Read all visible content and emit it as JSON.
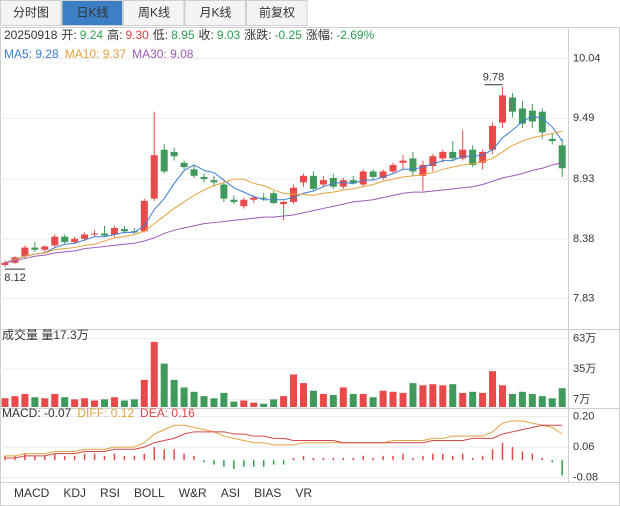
{
  "tabs": [
    "分时图",
    "日K线",
    "周K线",
    "月K线",
    "前复权"
  ],
  "active_tab": 1,
  "indicator_tabs": [
    "MACD",
    "KDJ",
    "RSI",
    "BOLL",
    "W&R",
    "ASI",
    "BIAS",
    "VR"
  ],
  "active_indicator": 0,
  "chart_data": [
    {
      "type": "candlestick",
      "info": {
        "date": "20250918",
        "items": [
          {
            "label": "开:",
            "value": "9.24",
            "color": "#2e9e4e"
          },
          {
            "label": "高:",
            "value": "9.30",
            "color": "#e03c3c"
          },
          {
            "label": "低:",
            "value": "8.95",
            "color": "#2e9e4e"
          },
          {
            "label": "收:",
            "value": "9.03",
            "color": "#2e9e4e"
          },
          {
            "label": "涨跌:",
            "value": "-0.25",
            "color": "#2e9e4e"
          },
          {
            "label": "涨幅:",
            "value": "-2.69%",
            "color": "#2e9e4e"
          }
        ]
      },
      "open": [
        8.14,
        8.16,
        8.22,
        8.3,
        8.28,
        8.32,
        8.4,
        8.35,
        8.38,
        8.42,
        8.43,
        8.42,
        8.47,
        8.45,
        8.45,
        8.75,
        9.2,
        9.18,
        9.08,
        9.02,
        8.95,
        8.92,
        8.88,
        8.74,
        8.68,
        8.74,
        8.76,
        8.8,
        8.7,
        8.72,
        8.9,
        8.96,
        8.88,
        8.94,
        8.86,
        8.92,
        8.88,
        9.0,
        8.94,
        9.0,
        9.08,
        9.12,
        8.96,
        9.05,
        9.12,
        9.18,
        9.12,
        9.2,
        9.08,
        9.2,
        9.45,
        9.68,
        9.58,
        9.56,
        9.55,
        9.3,
        9.24
      ],
      "high": [
        8.18,
        8.22,
        8.32,
        8.35,
        8.32,
        8.42,
        8.42,
        8.4,
        8.44,
        8.46,
        8.5,
        8.5,
        8.5,
        8.48,
        8.75,
        9.55,
        9.25,
        9.22,
        9.1,
        9.06,
        8.98,
        8.96,
        8.9,
        8.78,
        8.76,
        8.78,
        8.8,
        8.82,
        8.73,
        8.88,
        8.98,
        9.0,
        8.96,
        8.98,
        8.94,
        8.96,
        9.02,
        9.02,
        9.02,
        9.08,
        9.15,
        9.18,
        9.1,
        9.16,
        9.2,
        9.28,
        9.38,
        9.24,
        9.2,
        9.45,
        9.78,
        9.72,
        9.65,
        9.62,
        9.58,
        9.35,
        9.3
      ],
      "low": [
        8.12,
        8.15,
        8.2,
        8.26,
        8.25,
        8.3,
        8.33,
        8.33,
        8.36,
        8.4,
        8.4,
        8.4,
        8.43,
        8.43,
        8.44,
        8.73,
        8.98,
        9.1,
        9.02,
        8.94,
        8.9,
        8.86,
        8.72,
        8.7,
        8.66,
        8.71,
        8.73,
        8.7,
        8.55,
        8.7,
        8.86,
        8.82,
        8.86,
        8.84,
        8.84,
        8.88,
        8.86,
        8.92,
        8.92,
        8.98,
        9.02,
        8.96,
        8.82,
        9.0,
        9.08,
        9.1,
        9.1,
        9.04,
        9.02,
        9.16,
        9.4,
        9.5,
        9.4,
        9.4,
        9.3,
        9.25,
        8.95
      ],
      "close": [
        8.16,
        8.21,
        8.3,
        8.28,
        8.31,
        8.4,
        8.35,
        8.38,
        8.42,
        8.43,
        8.41,
        8.48,
        8.45,
        8.44,
        8.73,
        9.15,
        9.0,
        9.14,
        9.04,
        8.96,
        8.93,
        8.9,
        8.75,
        8.72,
        8.74,
        8.76,
        8.75,
        8.71,
        8.72,
        8.85,
        8.96,
        8.84,
        8.92,
        8.86,
        8.92,
        8.89,
        9.0,
        8.95,
        9.0,
        9.06,
        9.1,
        9.0,
        9.06,
        9.14,
        9.18,
        9.12,
        9.2,
        9.06,
        9.18,
        9.42,
        9.7,
        9.55,
        9.44,
        9.46,
        9.36,
        9.28,
        9.03
      ],
      "up_color": "#e84a4a",
      "down_color": "#3f9a5c",
      "series": [
        {
          "name": "MA5: 9.28",
          "color": "#3b7ed1",
          "values": [
            8.16,
            8.19,
            8.22,
            8.24,
            8.25,
            8.3,
            8.33,
            8.34,
            8.37,
            8.4,
            8.4,
            8.42,
            8.44,
            8.44,
            8.5,
            8.65,
            8.75,
            8.89,
            9.01,
            9.06,
            9.01,
            8.99,
            8.92,
            8.85,
            8.81,
            8.77,
            8.74,
            8.74,
            8.74,
            8.76,
            8.8,
            8.82,
            8.86,
            8.89,
            8.9,
            8.89,
            8.92,
            8.92,
            8.95,
            8.98,
            9.02,
            9.02,
            9.04,
            9.07,
            9.1,
            9.1,
            9.14,
            9.14,
            9.15,
            9.2,
            9.31,
            9.38,
            9.46,
            9.51,
            9.49,
            9.41,
            9.28
          ]
        },
        {
          "name": "MA10: 9.37",
          "color": "#e6a23c",
          "values": [
            8.16,
            8.19,
            8.22,
            8.24,
            8.25,
            8.28,
            8.29,
            8.3,
            8.32,
            8.33,
            8.36,
            8.39,
            8.4,
            8.42,
            8.45,
            8.52,
            8.59,
            8.66,
            8.72,
            8.78,
            8.83,
            8.87,
            8.9,
            8.93,
            8.93,
            8.89,
            8.87,
            8.83,
            8.8,
            8.79,
            8.79,
            8.78,
            8.8,
            8.81,
            8.83,
            8.84,
            8.86,
            8.88,
            8.91,
            8.93,
            8.95,
            8.96,
            8.97,
            8.99,
            9.02,
            9.04,
            9.06,
            9.07,
            9.09,
            9.12,
            9.18,
            9.24,
            9.28,
            9.31,
            9.33,
            9.35,
            9.37
          ]
        },
        {
          "name": "MA30: 9.08",
          "color": "#a05ab8",
          "values": [
            8.16,
            8.18,
            8.2,
            8.22,
            8.23,
            8.25,
            8.26,
            8.27,
            8.29,
            8.3,
            8.31,
            8.32,
            8.33,
            8.34,
            8.36,
            8.39,
            8.43,
            8.46,
            8.48,
            8.5,
            8.52,
            8.53,
            8.54,
            8.55,
            8.56,
            8.57,
            8.58,
            8.58,
            8.59,
            8.6,
            8.62,
            8.64,
            8.66,
            8.68,
            8.7,
            8.72,
            8.73,
            8.74,
            8.76,
            8.78,
            8.8,
            8.81,
            8.81,
            8.82,
            8.83,
            8.84,
            8.85,
            8.86,
            8.88,
            8.91,
            8.94,
            8.96,
            8.98,
            9.01,
            9.03,
            9.06,
            9.08
          ]
        }
      ],
      "ylim": [
        7.56,
        10.32
      ],
      "yticks": [
        10.04,
        9.49,
        8.93,
        8.38,
        7.83
      ],
      "grid": true
    },
    {
      "type": "bar",
      "title": "成交量 量17.3万",
      "values": [
        8,
        10,
        12,
        9,
        8,
        12,
        9,
        7,
        8,
        6,
        7,
        9,
        6,
        7,
        25,
        60,
        40,
        25,
        18,
        14,
        10,
        8,
        13,
        5,
        6,
        4,
        3,
        7,
        10,
        30,
        22,
        15,
        12,
        11,
        18,
        12,
        12,
        9,
        15,
        14,
        13,
        22,
        20,
        21,
        20,
        21,
        13,
        14,
        13,
        33,
        20,
        12,
        14,
        12,
        10,
        8,
        17.3
      ],
      "ylim": [
        0,
        70
      ],
      "yticks": [
        {
          "value": 63,
          "label": "63万"
        },
        {
          "value": 35,
          "label": "35万"
        },
        {
          "value": 7,
          "label": "7万"
        }
      ],
      "grid": true
    },
    {
      "type": "macd",
      "name": "MACD: -0.07",
      "color": "#333333",
      "up_color": "#e84a4a",
      "down_color": "#2e9e4e",
      "values": [
        0.02,
        0.02,
        0.03,
        0.02,
        0.02,
        0.03,
        0.02,
        0.02,
        0.03,
        0.03,
        0.02,
        0.03,
        0.02,
        0.02,
        0.03,
        0.06,
        0.05,
        0.05,
        0.03,
        0.02,
        -0.01,
        -0.02,
        -0.03,
        -0.04,
        -0.03,
        -0.03,
        -0.03,
        -0.02,
        -0.02,
        0.01,
        0.02,
        0.01,
        0.01,
        0.01,
        0.01,
        0.01,
        0.02,
        0.01,
        0.02,
        0.02,
        0.03,
        0.01,
        0.02,
        0.03,
        0.03,
        0.02,
        0.03,
        0.01,
        0.02,
        0.05,
        0.08,
        0.06,
        0.04,
        0.03,
        0.01,
        -0.01,
        -0.07
      ],
      "series": [
        {
          "name": "DIFF: 0.12",
          "color": "#e0a440",
          "values": [
            0.02,
            0.02,
            0.03,
            0.03,
            0.03,
            0.04,
            0.04,
            0.04,
            0.05,
            0.05,
            0.05,
            0.06,
            0.06,
            0.06,
            0.08,
            0.12,
            0.14,
            0.16,
            0.16,
            0.15,
            0.14,
            0.13,
            0.11,
            0.1,
            0.09,
            0.08,
            0.08,
            0.07,
            0.07,
            0.07,
            0.08,
            0.08,
            0.08,
            0.08,
            0.08,
            0.08,
            0.08,
            0.08,
            0.08,
            0.09,
            0.09,
            0.09,
            0.09,
            0.1,
            0.1,
            0.11,
            0.11,
            0.11,
            0.11,
            0.13,
            0.17,
            0.18,
            0.18,
            0.17,
            0.16,
            0.15,
            0.12
          ]
        },
        {
          "name": "DEA: 0.16",
          "color": "#d64545",
          "values": [
            0.01,
            0.01,
            0.02,
            0.02,
            0.02,
            0.03,
            0.03,
            0.03,
            0.04,
            0.04,
            0.04,
            0.05,
            0.05,
            0.05,
            0.06,
            0.08,
            0.09,
            0.1,
            0.12,
            0.13,
            0.13,
            0.13,
            0.13,
            0.12,
            0.12,
            0.11,
            0.11,
            0.1,
            0.1,
            0.09,
            0.09,
            0.09,
            0.09,
            0.09,
            0.08,
            0.08,
            0.08,
            0.08,
            0.08,
            0.08,
            0.08,
            0.08,
            0.08,
            0.09,
            0.09,
            0.09,
            0.09,
            0.1,
            0.1,
            0.1,
            0.12,
            0.13,
            0.14,
            0.15,
            0.16,
            0.16,
            0.16
          ]
        }
      ],
      "ylim": [
        -0.1,
        0.23
      ],
      "yticks": [
        {
          "value": 0.2,
          "label": "0.20"
        },
        0.06,
        -0.08
      ],
      "grid": true
    }
  ]
}
